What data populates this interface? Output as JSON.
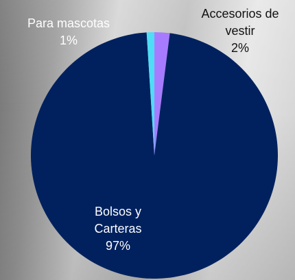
{
  "chart_data": {
    "type": "pie",
    "categories": [
      "Accesorios de vestir",
      "Bolsos y Carteras",
      "Para mascotas"
    ],
    "values": [
      2,
      97,
      1
    ],
    "value_labels": [
      "2%",
      "97%",
      "1%"
    ],
    "colors": [
      "#a77bff",
      "#00215e",
      "#4fdcf5"
    ]
  }
}
